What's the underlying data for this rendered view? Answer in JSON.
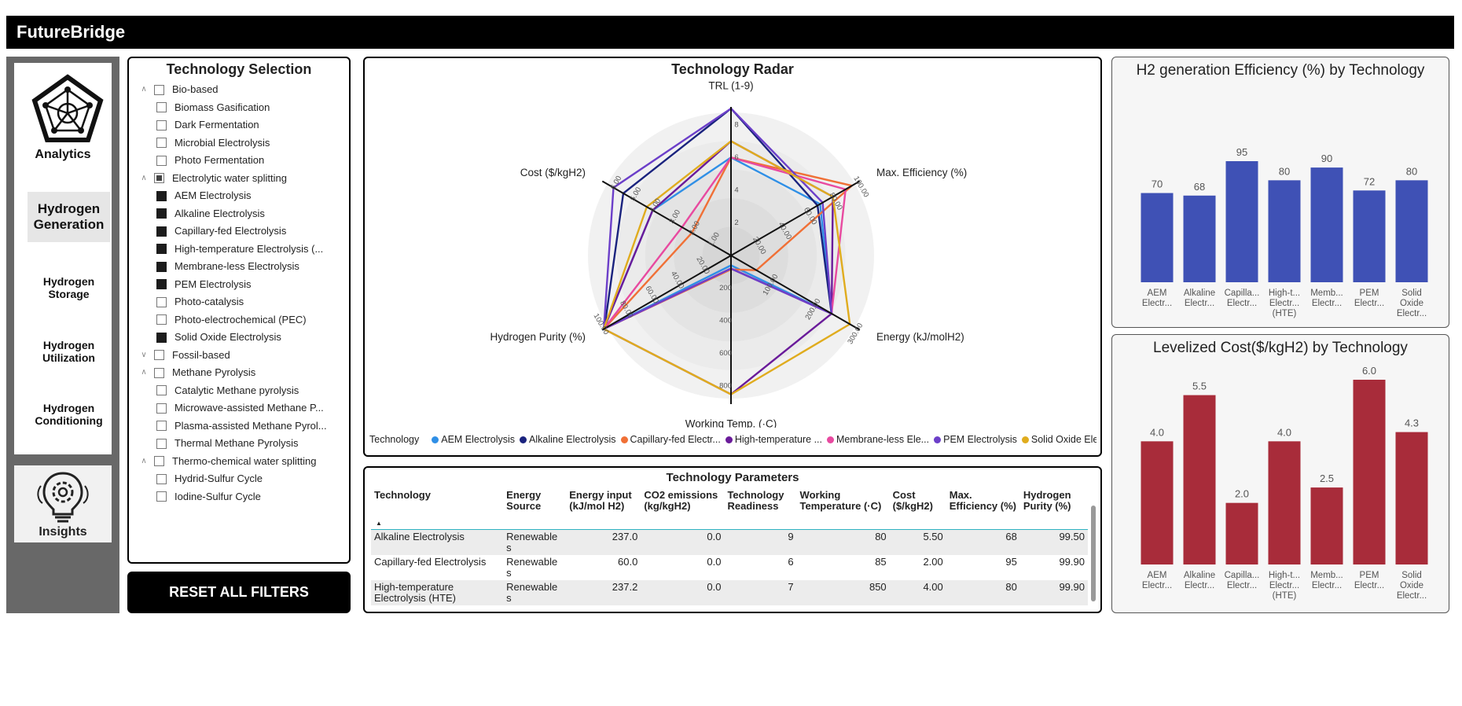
{
  "app": {
    "title": "FutureBridge"
  },
  "nav": {
    "analytics_label": "Analytics",
    "items": [
      "Hydrogen Generation",
      "Hydrogen Storage",
      "Hydrogen Utilization",
      "Hydrogen Conditioning"
    ],
    "active": "Hydrogen Generation",
    "insights_label": "Insights"
  },
  "selection": {
    "title": "Technology Selection",
    "tree": [
      {
        "label": "Bio-based",
        "level": 0,
        "expanded": true,
        "state": "unchecked"
      },
      {
        "label": "Biomass Gasification",
        "level": 1,
        "state": "unchecked"
      },
      {
        "label": "Dark Fermentation",
        "level": 1,
        "state": "unchecked"
      },
      {
        "label": "Microbial Electrolysis",
        "level": 1,
        "state": "unchecked"
      },
      {
        "label": "Photo Fermentation",
        "level": 1,
        "state": "unchecked"
      },
      {
        "label": "Electrolytic water splitting",
        "level": 0,
        "expanded": true,
        "state": "partial"
      },
      {
        "label": "AEM Electrolysis",
        "level": 1,
        "state": "checked"
      },
      {
        "label": "Alkaline Electrolysis",
        "level": 1,
        "state": "checked"
      },
      {
        "label": "Capillary-fed Electrolysis",
        "level": 1,
        "state": "checked"
      },
      {
        "label": "High-temperature Electrolysis (...",
        "level": 1,
        "state": "checked"
      },
      {
        "label": "Membrane-less Electrolysis",
        "level": 1,
        "state": "checked"
      },
      {
        "label": "PEM Electrolysis",
        "level": 1,
        "state": "checked"
      },
      {
        "label": "Photo-catalysis",
        "level": 1,
        "state": "unchecked"
      },
      {
        "label": "Photo-electrochemical (PEC)",
        "level": 1,
        "state": "unchecked"
      },
      {
        "label": "Solid Oxide Electrolysis",
        "level": 1,
        "state": "checked"
      },
      {
        "label": "Fossil-based",
        "level": 0,
        "expanded": false,
        "state": "unchecked"
      },
      {
        "label": "Methane Pyrolysis",
        "level": 0,
        "expanded": true,
        "state": "unchecked"
      },
      {
        "label": "Catalytic Methane pyrolysis",
        "level": 1,
        "state": "unchecked"
      },
      {
        "label": "Microwave-assisted Methane P...",
        "level": 1,
        "state": "unchecked"
      },
      {
        "label": "Plasma-assisted Methane Pyrol...",
        "level": 1,
        "state": "unchecked"
      },
      {
        "label": "Thermal Methane Pyrolysis",
        "level": 1,
        "state": "unchecked"
      },
      {
        "label": "Thermo-chemical water splitting",
        "level": 0,
        "expanded": true,
        "state": "unchecked"
      },
      {
        "label": "Hydrid-Sulfur Cycle",
        "level": 1,
        "state": "unchecked"
      },
      {
        "label": "Iodine-Sulfur Cycle",
        "level": 1,
        "state": "unchecked"
      }
    ],
    "reset_label": "RESET ALL FILTERS"
  },
  "radar": {
    "title": "Technology Radar",
    "axes": [
      {
        "label": "TRL (1-9)",
        "max": 9,
        "ticks": [
          "2",
          "4",
          "6",
          "8"
        ]
      },
      {
        "label": "Max. Efficiency (%)",
        "max": 100,
        "ticks": [
          "20.00",
          "40.00",
          "60.00",
          "80.00",
          "100.00"
        ]
      },
      {
        "label": "Energy (kJ/molH2)",
        "max": 300,
        "ticks": [
          "100.00",
          "200.00",
          "300.00"
        ]
      },
      {
        "label": "Working Temp. (·C)",
        "max": 900,
        "ticks": [
          "200",
          "400",
          "600",
          "800"
        ]
      },
      {
        "label": "Hydrogen Purity (%)",
        "max": 100,
        "ticks": [
          "20.00",
          "40.00",
          "60.00",
          "80.00",
          "100.00"
        ]
      },
      {
        "label": "Cost ($/kgH2)",
        "max": 6.5,
        "ticks": [
          "1.00",
          "2.00",
          "3.00",
          "4.00",
          "5.00",
          "6.00"
        ]
      }
    ],
    "legend_title": "Technology",
    "legend": [
      "AEM Electrolysis",
      "Alkaline Electrolysis",
      "Capillary-fed Electr...",
      "High-temperature ...",
      "Membrane-less Ele...",
      "PEM Electrolysis",
      "Solid Oxide Electrol..."
    ],
    "colors": [
      "#2f8fe6",
      "#1a237e",
      "#f07036",
      "#6a1b9a",
      "#e84aa0",
      "#6c3fc9",
      "#e0ac1e"
    ],
    "series": [
      {
        "name": "AEM Electrolysis",
        "values": [
          6,
          70,
          237,
          60,
          99.9,
          4.0
        ]
      },
      {
        "name": "Alkaline Electrolysis",
        "values": [
          9,
          68,
          237,
          80,
          99.5,
          5.5
        ]
      },
      {
        "name": "Capillary-fed Electrolysis",
        "values": [
          6,
          95,
          60,
          85,
          99.9,
          2.0
        ]
      },
      {
        "name": "High-temperature Electrolysis",
        "values": [
          7,
          80,
          237.2,
          850,
          99.9,
          4.0
        ]
      },
      {
        "name": "Membrane-less Electrolysis",
        "values": [
          6,
          90,
          237,
          80,
          99.9,
          2.5
        ]
      },
      {
        "name": "PEM Electrolysis",
        "values": [
          9,
          72,
          237,
          80,
          99.9,
          6.0
        ]
      },
      {
        "name": "Solid Oxide Electrolysis",
        "values": [
          7,
          80,
          280,
          850,
          99.9,
          4.3
        ]
      }
    ]
  },
  "params": {
    "title": "Technology Parameters",
    "columns": [
      "Technology",
      "Energy Source",
      "Energy input (kJ/mol H2)",
      "CO2 emissions (kg/kgH2)",
      "Technology Readiness",
      "Working Temperature (·C)",
      "Cost ($/kgH2)",
      "Max. Efficiency (%)",
      "Hydrogen Purity (%)"
    ],
    "rows": [
      [
        "Alkaline Electrolysis",
        "Renewable s",
        "237.0",
        "0.0",
        "9",
        "80",
        "5.50",
        "68",
        "99.50"
      ],
      [
        "Capillary-fed Electrolysis",
        "Renewable s",
        "60.0",
        "0.0",
        "6",
        "85",
        "2.00",
        "95",
        "99.90"
      ],
      [
        "High-temperature Electrolysis (HTE)",
        "Renewable s",
        "237.2",
        "0.0",
        "7",
        "850",
        "4.00",
        "80",
        "99.90"
      ]
    ],
    "sort_indicator": "▲"
  },
  "chart_data": [
    {
      "type": "bar",
      "title": "H2 generation Efficiency (%) by Technology",
      "categories": [
        [
          "AEM",
          "Electr..."
        ],
        [
          "Alkaline",
          "Electr..."
        ],
        [
          "Capilla...",
          "Electr..."
        ],
        [
          "High-t...",
          "Electr...",
          "(HTE)"
        ],
        [
          "Memb...",
          "Electr..."
        ],
        [
          "PEM",
          "Electr..."
        ],
        [
          "Solid",
          "Oxide",
          "Electr..."
        ]
      ],
      "values": [
        70,
        68,
        95,
        80,
        90,
        72,
        80
      ],
      "labels": [
        "70",
        "68",
        "95",
        "80",
        "90",
        "72",
        "80"
      ],
      "ylim": [
        0,
        95
      ],
      "color": "#3f51b5",
      "xlabel": "",
      "ylabel": ""
    },
    {
      "type": "bar",
      "title": "Levelized Cost($/kgH2) by Technology",
      "categories": [
        [
          "AEM",
          "Electr..."
        ],
        [
          "Alkaline",
          "Electr..."
        ],
        [
          "Capilla...",
          "Electr..."
        ],
        [
          "High-t...",
          "Electr...",
          "(HTE)"
        ],
        [
          "Memb...",
          "Electr..."
        ],
        [
          "PEM",
          "Electr..."
        ],
        [
          "Solid",
          "Oxide",
          "Electr..."
        ]
      ],
      "values": [
        4.0,
        5.5,
        2.0,
        4.0,
        2.5,
        6.0,
        4.3
      ],
      "labels": [
        "4.0",
        "5.5",
        "2.0",
        "4.0",
        "2.5",
        "6.0",
        "4.3"
      ],
      "ylim": [
        0,
        6.0
      ],
      "color": "#a82c3a",
      "xlabel": "",
      "ylabel": ""
    }
  ]
}
